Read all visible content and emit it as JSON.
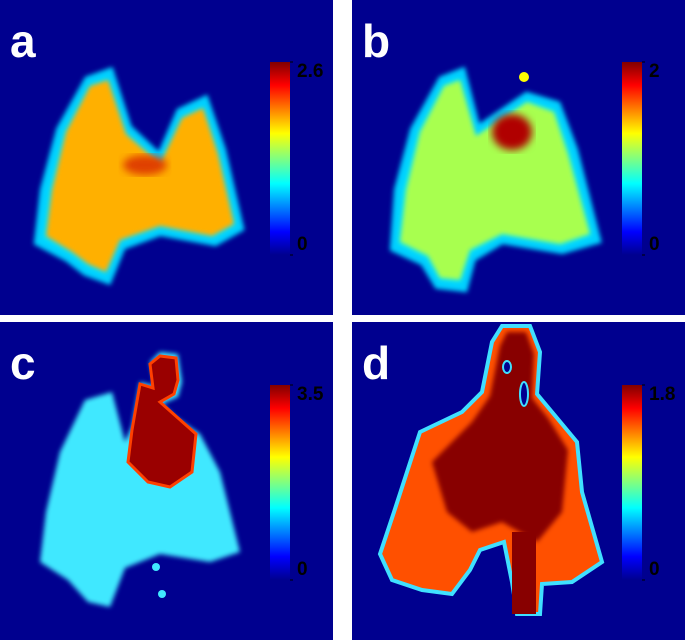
{
  "panels": [
    {
      "label": "a",
      "colorbar": {
        "min": 0,
        "max": 2.6
      }
    },
    {
      "label": "b",
      "colorbar": {
        "min": 0,
        "max": 2
      }
    },
    {
      "label": "c",
      "colorbar": {
        "min": 0,
        "max": 3.5
      }
    },
    {
      "label": "d",
      "colorbar": {
        "min": 0,
        "max": 1.8
      }
    }
  ]
}
